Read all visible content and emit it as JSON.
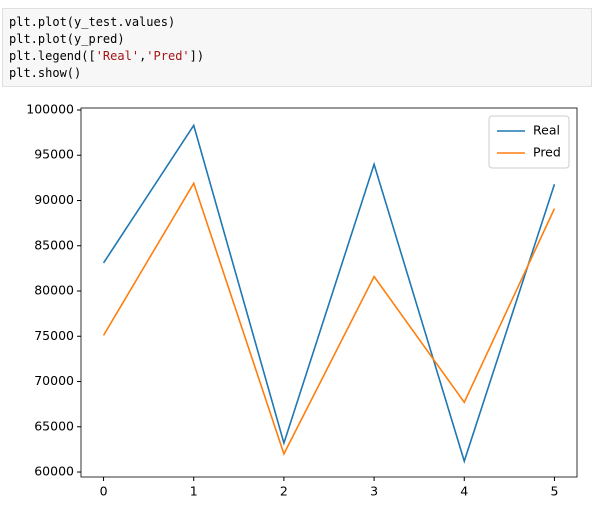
{
  "code": {
    "lines": [
      [
        {
          "text": "plt.plot(y_test.values)",
          "kind": "plain"
        }
      ],
      [
        {
          "text": "plt.plot(y_pred)",
          "kind": "plain"
        }
      ],
      [
        {
          "text": "plt.legend([",
          "kind": "plain"
        },
        {
          "text": "'Real'",
          "kind": "string"
        },
        {
          "text": ",",
          "kind": "plain"
        },
        {
          "text": "'Pred'",
          "kind": "string"
        },
        {
          "text": "])",
          "kind": "plain"
        }
      ],
      [
        {
          "text": "plt.show()",
          "kind": "plain"
        }
      ]
    ]
  },
  "chart_data": {
    "type": "line",
    "x": [
      0,
      1,
      2,
      3,
      4,
      5
    ],
    "series": [
      {
        "name": "Real",
        "color": "#1f77b4",
        "values": [
          83100,
          98300,
          63200,
          94000,
          61200,
          91800
        ]
      },
      {
        "name": "Pred",
        "color": "#ff7f0e",
        "values": [
          75100,
          91900,
          62000,
          81600,
          67700,
          89100
        ]
      }
    ],
    "xlim": [
      -0.25,
      5.25
    ],
    "xticks": [
      0,
      1,
      2,
      3,
      4,
      5
    ],
    "ylim": [
      59450,
      100220
    ],
    "yticks": [
      60000,
      65000,
      70000,
      75000,
      80000,
      85000,
      90000,
      95000,
      100000
    ],
    "legend": "upper right",
    "grid": false
  }
}
